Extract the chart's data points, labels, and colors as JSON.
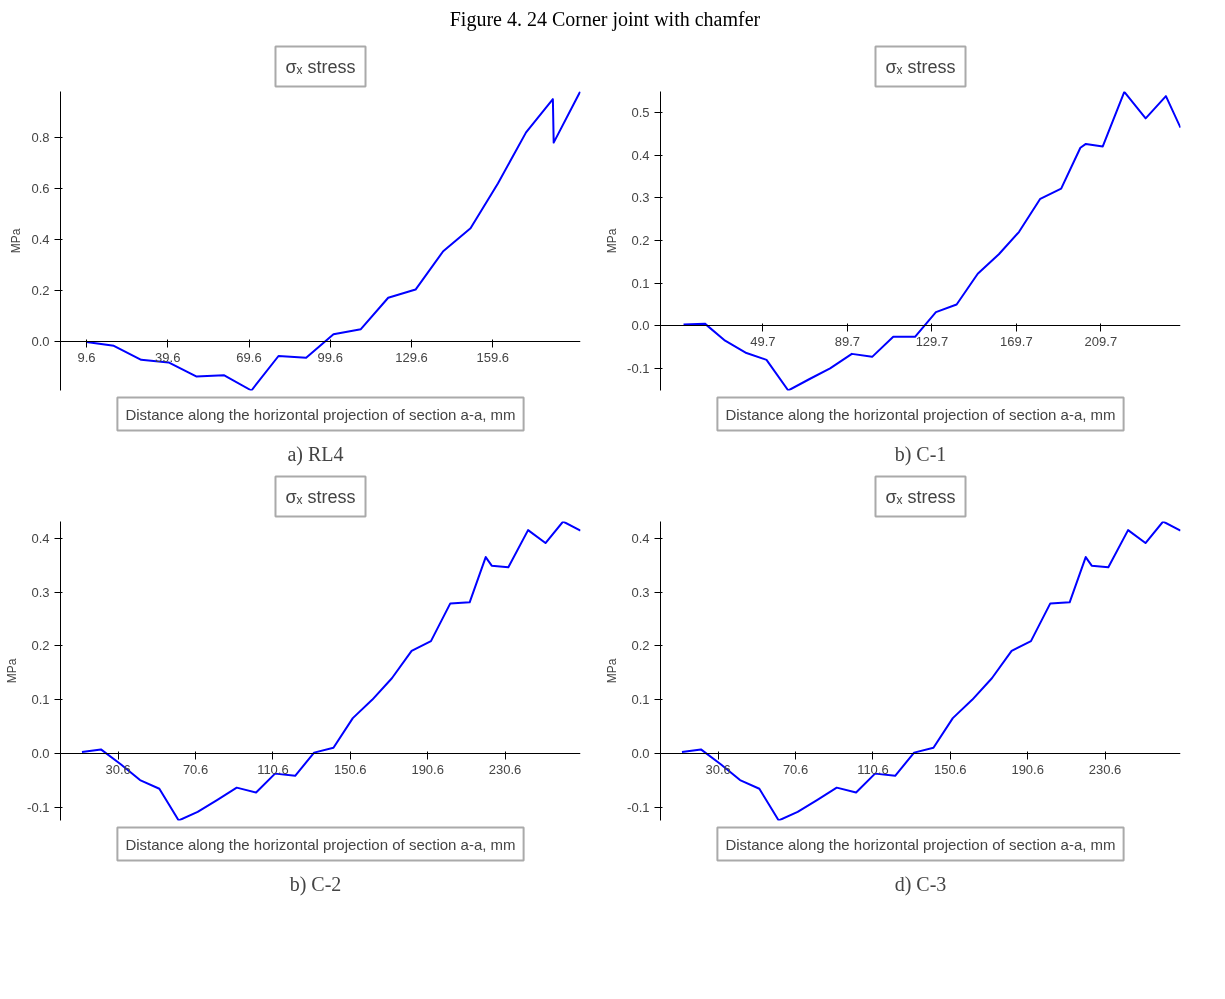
{
  "chart_data": [
    {
      "type": "line",
      "title": "σₓ stress",
      "xlabel": "Distance along the horizontal projection of section a-a, mm",
      "ylabel": "MPa",
      "annotations": [
        "Figure 4. 24 Corner joint with chamfer",
        "a)   RL4"
      ],
      "grid": false,
      "marker": "none",
      "line_style": "solid",
      "xlim": [
        0,
        192
      ],
      "ylim": [
        -0.19,
        0.98
      ],
      "xticks": [
        9.6,
        39.6,
        69.6,
        99.6,
        129.6,
        159.6
      ],
      "yticks": [
        {
          "value": 0,
          "label": "0.0"
        },
        {
          "value": 0.2,
          "label": "0.2"
        },
        {
          "value": 0.4,
          "label": "0.4"
        },
        {
          "value": 0.6,
          "label": "0.6"
        },
        {
          "value": 0.8,
          "label": "0.8"
        }
      ],
      "x": [
        9.6,
        19.7,
        29.8,
        39.9,
        50.1,
        60.3,
        70.5,
        80.5,
        90.7,
        100.8,
        110.9,
        121.0,
        131.1,
        141.3,
        151.4,
        161.5,
        171.9,
        181.8,
        182.1,
        191.9
      ],
      "series": [
        {
          "color": "#0000ff",
          "values": [
            0.0,
            -0.015,
            -0.07,
            -0.08,
            -0.135,
            -0.13,
            -0.19,
            -0.055,
            -0.062,
            0.03,
            0.05,
            0.173,
            0.205,
            0.355,
            0.445,
            0.62,
            0.82,
            0.95,
            0.78,
            0.98
          ]
        }
      ]
    },
    {
      "type": "line",
      "title": "σₓ stress",
      "xlabel": "Distance along the horizontal projection of section a-a, mm",
      "ylabel": "MPa",
      "annotations": [
        "b) C-1"
      ],
      "grid": false,
      "marker": "none",
      "line_style": "solid",
      "xlim": [
        1.2,
        247.4
      ],
      "ylim": [
        -0.152,
        0.55
      ],
      "xticks": [
        49.7,
        89.7,
        129.7,
        169.7,
        209.7
      ],
      "yticks": [
        {
          "value": -0.1,
          "label": "-0.1"
        },
        {
          "value": 0,
          "label": "0.0"
        },
        {
          "value": 0.1,
          "label": "0.1"
        },
        {
          "value": 0.2,
          "label": "0.2"
        },
        {
          "value": 0.3,
          "label": "0.3"
        },
        {
          "value": 0.4,
          "label": "0.4"
        },
        {
          "value": 0.5,
          "label": "0.5"
        }
      ],
      "x": [
        12.1,
        22.2,
        31.8,
        41.9,
        51.4,
        61.7,
        71.8,
        81.5,
        91.8,
        101.4,
        111.4,
        121.7,
        131.6,
        141.4,
        151.4,
        161.4,
        170.9,
        181.0,
        190.9,
        200.0,
        202.6,
        210.6,
        220.8,
        230.9,
        240.5,
        247.4
      ],
      "series": [
        {
          "color": "#0000ff",
          "values": [
            0.003,
            0.005,
            -0.035,
            -0.064,
            -0.08,
            -0.152,
            -0.125,
            -0.1,
            -0.066,
            -0.073,
            -0.026,
            -0.026,
            0.032,
            0.05,
            0.122,
            0.168,
            0.22,
            0.298,
            0.322,
            0.418,
            0.427,
            0.421,
            0.549,
            0.487,
            0.539,
            0.465
          ]
        }
      ]
    },
    {
      "type": "line",
      "title": "σₓ stress",
      "xlabel": "Distance along the horizontal projection of section a-a, mm",
      "ylabel": "MPa",
      "annotations": [
        "b)   C-2"
      ],
      "grid": false,
      "marker": "none",
      "line_style": "solid",
      "xlim": [
        0.8,
        269.6
      ],
      "ylim": [
        -0.124,
        0.431
      ],
      "xticks": [
        30.6,
        70.6,
        110.6,
        150.6,
        190.6,
        230.6
      ],
      "yticks": [
        {
          "value": -0.1,
          "label": "-0.1"
        },
        {
          "value": 0,
          "label": "0.0"
        },
        {
          "value": 0.1,
          "label": "0.1"
        },
        {
          "value": 0.2,
          "label": "0.2"
        },
        {
          "value": 0.3,
          "label": "0.3"
        },
        {
          "value": 0.4,
          "label": "0.4"
        }
      ],
      "x": [
        11.9,
        21.7,
        32.1,
        41.9,
        51.9,
        61.9,
        71.7,
        81.7,
        91.9,
        101.9,
        111.7,
        122.1,
        131.9,
        141.9,
        151.9,
        161.9,
        172.1,
        182.3,
        192.3,
        202.3,
        212.3,
        220.6,
        223.7,
        232.3,
        242.5,
        251.5,
        260.6,
        269.6
      ],
      "series": [
        {
          "color": "#0000ff",
          "values": [
            0.003,
            0.008,
            -0.02,
            -0.049,
            -0.065,
            -0.124,
            -0.108,
            -0.086,
            -0.063,
            -0.072,
            -0.037,
            -0.041,
            0.002,
            0.011,
            0.066,
            0.1,
            0.14,
            0.191,
            0.209,
            0.279,
            0.281,
            0.365,
            0.349,
            0.346,
            0.415,
            0.391,
            0.431,
            0.414
          ]
        }
      ]
    },
    {
      "type": "line",
      "title": "σₓ stress",
      "xlabel": "Distance along the horizontal projection of section a-a, mm",
      "ylabel": "MPa",
      "annotations": [
        "d) C-3"
      ],
      "grid": false,
      "marker": "none",
      "line_style": "solid",
      "xlim": [
        0.8,
        269.6
      ],
      "ylim": [
        -0.124,
        0.431
      ],
      "xticks": [
        30.6,
        70.6,
        110.6,
        150.6,
        190.6,
        230.6
      ],
      "yticks": [
        {
          "value": -0.1,
          "label": "-0.1"
        },
        {
          "value": 0,
          "label": "0.0"
        },
        {
          "value": 0.1,
          "label": "0.1"
        },
        {
          "value": 0.2,
          "label": "0.2"
        },
        {
          "value": 0.3,
          "label": "0.3"
        },
        {
          "value": 0.4,
          "label": "0.4"
        }
      ],
      "x": [
        11.9,
        21.7,
        32.1,
        41.9,
        51.9,
        61.9,
        71.7,
        81.7,
        91.9,
        101.9,
        111.7,
        122.1,
        131.9,
        141.9,
        151.9,
        161.9,
        172.1,
        182.3,
        192.3,
        202.3,
        212.3,
        220.6,
        223.7,
        232.3,
        242.5,
        251.5,
        260.6,
        269.6
      ],
      "series": [
        {
          "color": "#0000ff",
          "values": [
            0.003,
            0.008,
            -0.02,
            -0.049,
            -0.065,
            -0.124,
            -0.108,
            -0.086,
            -0.063,
            -0.072,
            -0.037,
            -0.041,
            0.002,
            0.011,
            0.066,
            0.1,
            0.14,
            0.191,
            0.209,
            0.279,
            0.281,
            0.365,
            0.349,
            0.346,
            0.415,
            0.391,
            0.431,
            0.414
          ]
        }
      ]
    }
  ]
}
